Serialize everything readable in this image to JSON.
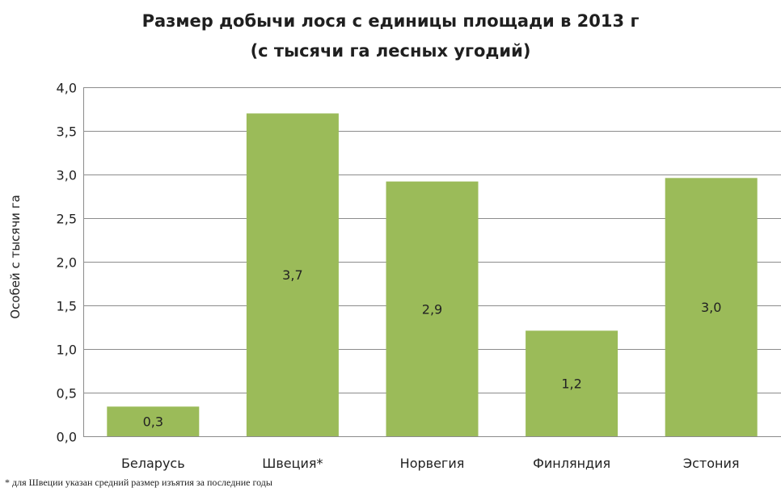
{
  "chart_data": {
    "type": "bar",
    "title": "Размер добычи лося с единицы площади в 2013 г",
    "subtitle": "(с тысячи га лесных угодий)",
    "ylabel": "Особей  с тысячи га",
    "xlabel": "",
    "categories": [
      "Беларусь",
      "Швеция*",
      "Норвегия",
      "Финляндия",
      "Эстония"
    ],
    "values": [
      0.34,
      3.7,
      2.92,
      1.21,
      2.96
    ],
    "data_labels": [
      "0,3",
      "3,7",
      "2,9",
      "1,2",
      "3,0"
    ],
    "ylim": [
      0,
      4.0
    ],
    "yticks": [
      "0,0",
      "0,5",
      "1,0",
      "1,5",
      "2,0",
      "2,5",
      "3,0",
      "3,5",
      "4,0"
    ],
    "grid": true,
    "bar_color": "#9bbb59",
    "footnote": "* для Швеции указан средний размер изъятия за последние годы"
  }
}
